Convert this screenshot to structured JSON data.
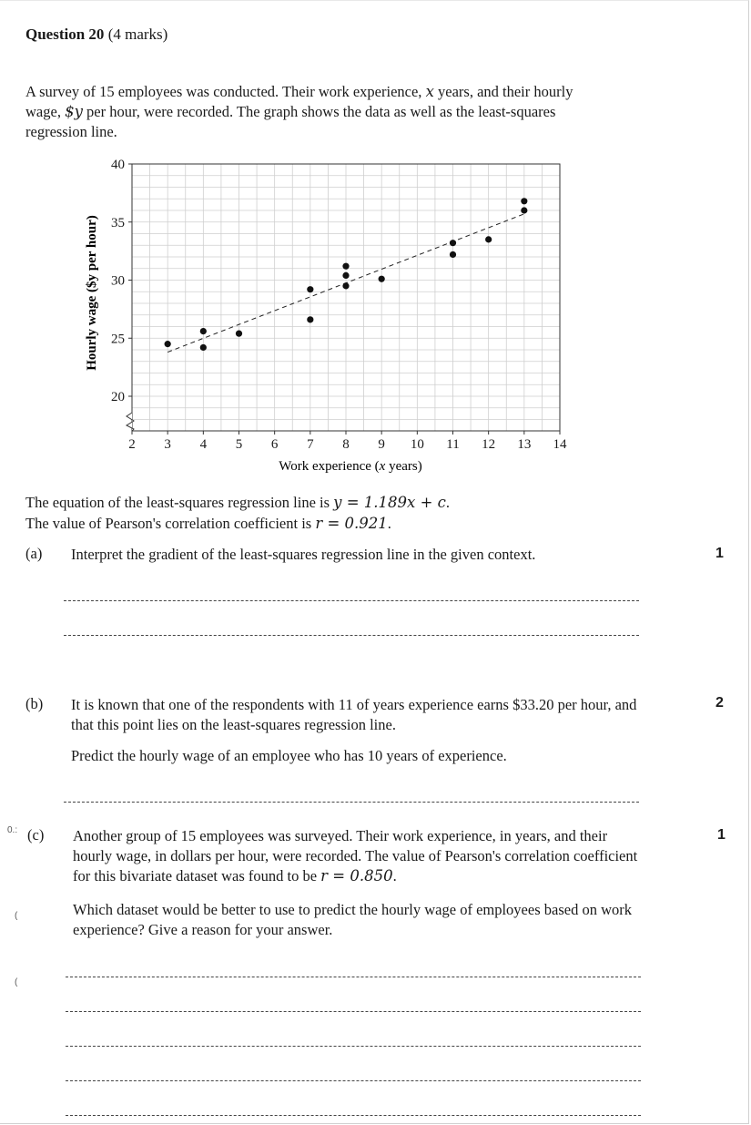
{
  "question": {
    "title": "Question 20",
    "marks_text": "(4 marks)"
  },
  "intro": {
    "s1": "A survey of 15 employees was conducted. Their work experience, ",
    "x_var": "x",
    "s2": " years, and their hourly wage, ",
    "y_var": "$y",
    "s3": " per hour, were recorded. The graph shows the data as well as the least-squares regression line."
  },
  "chart_data": {
    "type": "scatter",
    "xlabel_prefix": "Work experience (",
    "xlabel_var": "x",
    "xlabel_suffix": " years)",
    "ylabel": "Hourly wage ($y per hour)",
    "xlim": [
      2,
      14
    ],
    "ylim": [
      20,
      40
    ],
    "x_ticks": [
      2,
      3,
      4,
      5,
      6,
      7,
      8,
      9,
      10,
      11,
      12,
      13,
      14
    ],
    "y_ticks": [
      20,
      25,
      30,
      35,
      40
    ],
    "grid": true,
    "axis_break": "y",
    "points": [
      {
        "x": 3,
        "y": 24.5
      },
      {
        "x": 4,
        "y": 25.6
      },
      {
        "x": 4,
        "y": 24.2
      },
      {
        "x": 5,
        "y": 25.4
      },
      {
        "x": 7,
        "y": 29.2
      },
      {
        "x": 7,
        "y": 26.6
      },
      {
        "x": 8,
        "y": 31.2
      },
      {
        "x": 8,
        "y": 30.4
      },
      {
        "x": 8,
        "y": 29.5
      },
      {
        "x": 9,
        "y": 30.1
      },
      {
        "x": 11,
        "y": 33.2
      },
      {
        "x": 11,
        "y": 32.2
      },
      {
        "x": 12,
        "y": 33.5
      },
      {
        "x": 13,
        "y": 36.8
      },
      {
        "x": 13,
        "y": 36.0
      }
    ],
    "regression_line": {
      "x1": 3,
      "y1": 23.8,
      "x2": 13,
      "y2": 35.7,
      "style": "dashed"
    }
  },
  "equation": {
    "line1_text": "The equation of the least-squares regression line is ",
    "line1_math": "y = 1.189x + c",
    "line1_end": ".",
    "line2_text": "The value of Pearson's correlation coefficient is ",
    "line2_math": "r = 0.921",
    "line2_end": "."
  },
  "parts": {
    "a": {
      "label": "(a)",
      "text": "Interpret the gradient of the least-squares regression line in the given context.",
      "marks": "1"
    },
    "b": {
      "label": "(b)",
      "text1": "It is known that one of the respondents with 11 of years experience earns $33.20 per hour, and that this point lies on the least-squares regression line.",
      "text2": "Predict the hourly wage of an employee who has 10 years of experience.",
      "marks": "2"
    },
    "c": {
      "label": "(c)",
      "text1_start": "Another group of 15 employees was surveyed. Their work experience, in years, and their hourly wage, in dollars per hour, were recorded. The value of Pearson's correlation coefficient for this bivariate dataset was found to be ",
      "text1_math": "r = 0.850",
      "text1_end": ".",
      "text2": "Which dataset would be better to use to predict the hourly wage of employees based on work experience? Give a reason for your answer.",
      "marks": "1"
    }
  },
  "margin_marks": {
    "m1": "0.:",
    "m2": "(",
    "m3": "("
  }
}
